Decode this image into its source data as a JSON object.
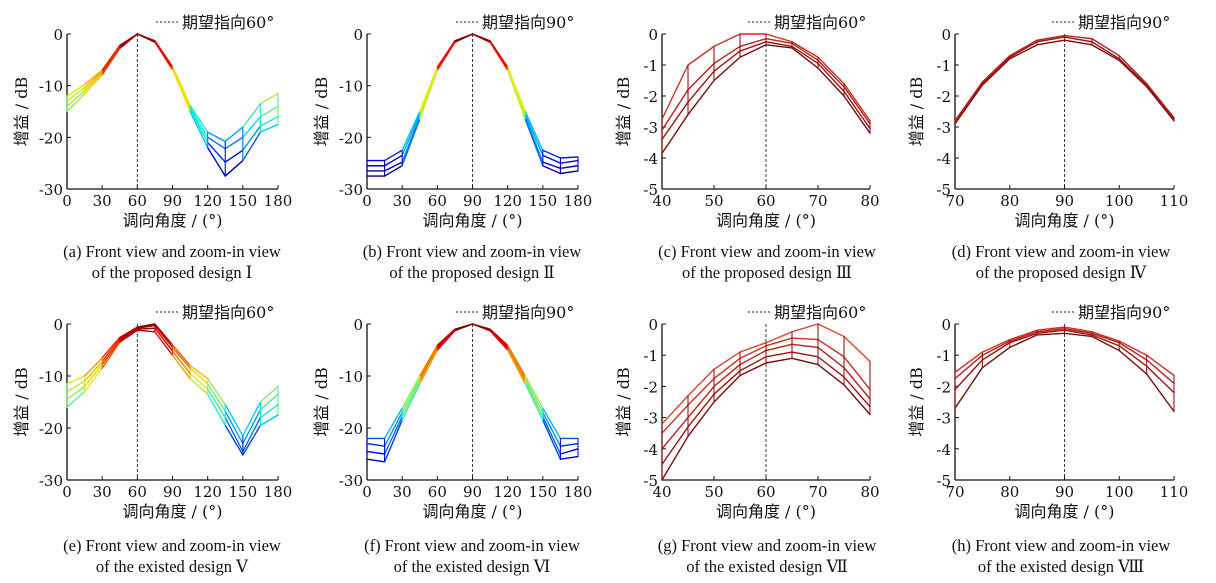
{
  "panels": [
    {
      "id": "a",
      "caption_line1": "(a) Front view and zoom-in view",
      "caption_line2": "of the proposed design Ⅰ",
      "legend": "期望指向60°",
      "xlabel": "调向角度 / (°)",
      "ylabel": "增益 / dB",
      "xticks": [
        "0",
        "30",
        "60",
        "90",
        "120",
        "150",
        "180"
      ],
      "yticks": [
        "0",
        "-10",
        "-20",
        "-30"
      ]
    },
    {
      "id": "b",
      "caption_line1": "(b)  Front view and zoom-in view",
      "caption_line2": "of the proposed design Ⅱ",
      "legend": "期望指向90°",
      "xlabel": "调向角度 / (°)",
      "ylabel": "增益 / dB",
      "xticks": [
        "0",
        "30",
        "60",
        "90",
        "120",
        "150",
        "180"
      ],
      "yticks": [
        "0",
        "-10",
        "-20",
        "-30"
      ]
    },
    {
      "id": "c",
      "caption_line1": "(c) Front view and zoom-in view",
      "caption_line2": "of the proposed design Ⅲ",
      "legend": "期望指向60°",
      "xlabel": "调向角度 / (°)",
      "ylabel": "增益 / dB",
      "xticks": [
        "40",
        "50",
        "60",
        "70",
        "80"
      ],
      "yticks": [
        "0",
        "-1",
        "-2",
        "-3",
        "-4",
        "-5"
      ]
    },
    {
      "id": "d",
      "caption_line1": "(d) Front view and zoom-in view",
      "caption_line2": "of the proposed design Ⅳ",
      "legend": "期望指向90°",
      "xlabel": "调向角度 / (°)",
      "ylabel": "增益 / dB",
      "xticks": [
        "70",
        "80",
        "90",
        "100",
        "110"
      ],
      "yticks": [
        "0",
        "-1",
        "-2",
        "-3",
        "-4",
        "-5"
      ]
    },
    {
      "id": "e",
      "caption_line1": "(e) Front view and zoom-in view",
      "caption_line2": "of the existed design Ⅴ",
      "legend": "期望指向60°",
      "xlabel": "调向角度 / (°)",
      "ylabel": "增益 / dB",
      "xticks": [
        "0",
        "30",
        "60",
        "90",
        "120",
        "150",
        "180"
      ],
      "yticks": [
        "0",
        "-10",
        "-20",
        "-30"
      ]
    },
    {
      "id": "f",
      "caption_line1": "(f) Front view and zoom-in view",
      "caption_line2": "of the existed design Ⅵ",
      "legend": "期望指向90°",
      "xlabel": "调向角度 / (°)",
      "ylabel": "增益 / dB",
      "xticks": [
        "0",
        "30",
        "60",
        "90",
        "120",
        "150",
        "180"
      ],
      "yticks": [
        "0",
        "-10",
        "-20",
        "-30"
      ]
    },
    {
      "id": "g",
      "caption_line1": "(g) Front view and zoom-in view",
      "caption_line2": "of the existed design Ⅶ",
      "legend": "期望指向60°",
      "xlabel": "调向角度 / (°)",
      "ylabel": "增益 / dB",
      "xticks": [
        "40",
        "50",
        "60",
        "70",
        "80"
      ],
      "yticks": [
        "0",
        "-1",
        "-2",
        "-3",
        "-4",
        "-5"
      ]
    },
    {
      "id": "h",
      "caption_line1": "(h) Front view and zoom-in view",
      "caption_line2": "of the existed design Ⅷ",
      "legend": "期望指向90°",
      "xlabel": "调向角度 / (°)",
      "ylabel": "增益 / dB",
      "xticks": [
        "70",
        "80",
        "90",
        "100",
        "110"
      ],
      "yticks": [
        "0",
        "-1",
        "-2",
        "-3",
        "-4",
        "-5"
      ]
    }
  ],
  "chart_data": [
    {
      "type": "line",
      "panel": "a",
      "target_angle": 60,
      "xlim": [
        0,
        180
      ],
      "ylim": [
        -30,
        0
      ],
      "grid": false,
      "legend_position": "top-right",
      "x": [
        0,
        15,
        30,
        45,
        60,
        75,
        90,
        105,
        120,
        135,
        150,
        165,
        180
      ],
      "series": [
        {
          "values": [
            -15.0,
            -11.6,
            -7.9,
            -2.8,
            0.0,
            -1.6,
            -6.9,
            -15.0,
            -22.0,
            -27.5,
            -24.5,
            -19.0,
            -17.5
          ]
        },
        {
          "values": [
            -14.0,
            -11.0,
            -7.6,
            -2.6,
            0.0,
            -1.5,
            -6.7,
            -14.6,
            -21.0,
            -24.8,
            -22.5,
            -17.8,
            -16.0
          ]
        },
        {
          "values": [
            -13.0,
            -10.4,
            -7.3,
            -2.4,
            0.0,
            -1.4,
            -6.5,
            -14.2,
            -20.0,
            -22.2,
            -20.0,
            -16.0,
            -14.0
          ]
        },
        {
          "values": [
            -12.0,
            -9.8,
            -7.0,
            -2.2,
            0.0,
            -1.3,
            -6.3,
            -13.8,
            -19.0,
            -20.8,
            -18.0,
            -13.5,
            -11.5
          ]
        }
      ]
    },
    {
      "type": "line",
      "panel": "b",
      "target_angle": 90,
      "xlim": [
        0,
        180
      ],
      "ylim": [
        -30,
        0
      ],
      "grid": false,
      "legend_position": "top-right",
      "x": [
        0,
        15,
        30,
        45,
        60,
        75,
        90,
        105,
        120,
        135,
        150,
        165,
        180
      ],
      "series": [
        {
          "values": [
            -27.5,
            -27.5,
            -25.5,
            -16.5,
            -7.0,
            -1.6,
            0.0,
            -1.6,
            -7.0,
            -16.5,
            -25.5,
            -27.0,
            -26.5
          ]
        },
        {
          "values": [
            -26.5,
            -26.5,
            -24.8,
            -16.0,
            -6.8,
            -1.5,
            0.0,
            -1.5,
            -6.8,
            -16.0,
            -24.8,
            -26.0,
            -25.5
          ]
        },
        {
          "values": [
            -25.5,
            -25.5,
            -23.5,
            -15.5,
            -6.6,
            -1.4,
            0.0,
            -1.4,
            -6.6,
            -15.5,
            -23.5,
            -25.0,
            -24.5
          ]
        },
        {
          "values": [
            -24.5,
            -24.5,
            -22.5,
            -15.0,
            -6.4,
            -1.3,
            0.0,
            -1.3,
            -6.4,
            -15.0,
            -22.5,
            -24.0,
            -23.8
          ]
        }
      ]
    },
    {
      "type": "line",
      "panel": "c",
      "target_angle": 60,
      "xlim": [
        40,
        80
      ],
      "ylim": [
        -5,
        0
      ],
      "grid": false,
      "legend_position": "top-right",
      "x": [
        40,
        45,
        50,
        55,
        60,
        65,
        70,
        75,
        80
      ],
      "series": [
        {
          "values": [
            -3.85,
            -2.6,
            -1.5,
            -0.75,
            -0.35,
            -0.45,
            -1.1,
            -2.0,
            -3.2
          ]
        },
        {
          "values": [
            -3.4,
            -2.2,
            -1.2,
            -0.55,
            -0.25,
            -0.4,
            -0.95,
            -1.85,
            -3.05
          ]
        },
        {
          "values": [
            -3.1,
            -1.8,
            -0.95,
            -0.4,
            -0.15,
            -0.3,
            -0.85,
            -1.7,
            -2.9
          ]
        },
        {
          "values": [
            -2.75,
            -1.0,
            -0.4,
            0.0,
            0.0,
            -0.25,
            -0.75,
            -1.6,
            -2.8
          ]
        }
      ]
    },
    {
      "type": "line",
      "panel": "d",
      "target_angle": 90,
      "xlim": [
        70,
        110
      ],
      "ylim": [
        -5,
        0
      ],
      "grid": false,
      "legend_position": "top-right",
      "x": [
        70,
        75,
        80,
        85,
        90,
        95,
        100,
        105,
        110
      ],
      "series": [
        {
          "values": [
            -2.9,
            -1.65,
            -0.8,
            -0.35,
            -0.2,
            -0.35,
            -0.85,
            -1.7,
            -2.8
          ]
        },
        {
          "values": [
            -2.85,
            -1.6,
            -0.75,
            -0.25,
            -0.1,
            -0.25,
            -0.8,
            -1.65,
            -2.75
          ]
        },
        {
          "values": [
            -2.8,
            -1.55,
            -0.7,
            -0.2,
            -0.05,
            -0.15,
            -0.7,
            -1.6,
            -2.7
          ]
        }
      ]
    },
    {
      "type": "line",
      "panel": "e",
      "target_angle": 60,
      "xlim": [
        0,
        180
      ],
      "ylim": [
        -30,
        0
      ],
      "grid": false,
      "legend_position": "top-right",
      "x": [
        0,
        15,
        30,
        45,
        60,
        75,
        90,
        105,
        120,
        135,
        150,
        165,
        180
      ],
      "series": [
        {
          "values": [
            -16.0,
            -13.0,
            -8.5,
            -3.5,
            -1.2,
            -1.5,
            -6.0,
            -10.5,
            -13.5,
            -19.5,
            -25.2,
            -19.5,
            -17.5
          ]
        },
        {
          "values": [
            -14.5,
            -12.0,
            -7.8,
            -3.2,
            -1.0,
            -0.8,
            -5.2,
            -9.5,
            -12.5,
            -18.0,
            -24.5,
            -18.0,
            -15.5
          ]
        },
        {
          "values": [
            -13.0,
            -11.0,
            -7.2,
            -2.9,
            -0.8,
            -0.3,
            -4.5,
            -8.5,
            -11.5,
            -16.8,
            -23.0,
            -16.5,
            -13.5
          ]
        },
        {
          "values": [
            -11.5,
            -10.0,
            -6.5,
            -2.6,
            -0.6,
            0.0,
            -4.0,
            -8.0,
            -10.5,
            -15.5,
            -21.5,
            -15.0,
            -12.0
          ]
        }
      ]
    },
    {
      "type": "line",
      "panel": "f",
      "target_angle": 90,
      "xlim": [
        0,
        180
      ],
      "ylim": [
        -30,
        0
      ],
      "grid": false,
      "legend_position": "top-right",
      "x": [
        0,
        15,
        30,
        45,
        60,
        75,
        90,
        105,
        120,
        135,
        150,
        165,
        180
      ],
      "series": [
        {
          "values": [
            -26.0,
            -26.5,
            -18.5,
            -11.5,
            -5.0,
            -1.3,
            0.0,
            -1.3,
            -5.0,
            -11.5,
            -18.5,
            -26.0,
            -25.5
          ]
        },
        {
          "values": [
            -24.5,
            -25.0,
            -17.8,
            -11.0,
            -4.7,
            -1.2,
            0.0,
            -1.2,
            -4.7,
            -11.0,
            -17.8,
            -25.0,
            -24.0
          ]
        },
        {
          "values": [
            -23.0,
            -23.5,
            -17.0,
            -10.5,
            -4.4,
            -1.1,
            0.0,
            -1.1,
            -4.4,
            -10.5,
            -17.0,
            -23.5,
            -23.0
          ]
        },
        {
          "values": [
            -22.0,
            -22.0,
            -16.2,
            -10.0,
            -4.1,
            -1.0,
            0.0,
            -1.0,
            -4.1,
            -10.0,
            -16.2,
            -22.0,
            -22.0
          ]
        }
      ]
    },
    {
      "type": "line",
      "panel": "g",
      "target_angle": 60,
      "xlim": [
        40,
        80
      ],
      "ylim": [
        -5,
        0
      ],
      "grid": false,
      "legend_position": "top-right",
      "x": [
        40,
        45,
        50,
        55,
        60,
        65,
        70,
        75,
        80
      ],
      "series": [
        {
          "values": [
            -5.0,
            -3.6,
            -2.5,
            -1.65,
            -1.25,
            -1.1,
            -1.3,
            -1.95,
            -2.9
          ]
        },
        {
          "values": [
            -4.5,
            -3.3,
            -2.25,
            -1.5,
            -1.05,
            -0.9,
            -1.05,
            -1.7,
            -2.65
          ]
        },
        {
          "values": [
            -4.0,
            -3.0,
            -2.0,
            -1.3,
            -0.85,
            -0.65,
            -0.75,
            -1.4,
            -2.4
          ]
        },
        {
          "values": [
            -3.5,
            -2.6,
            -1.75,
            -1.1,
            -0.7,
            -0.45,
            -0.5,
            -1.05,
            -2.1
          ]
        },
        {
          "values": [
            -3.2,
            -2.3,
            -1.45,
            -0.9,
            -0.6,
            -0.25,
            0.0,
            -0.4,
            -1.2
          ]
        }
      ]
    },
    {
      "type": "line",
      "panel": "h",
      "target_angle": 90,
      "xlim": [
        70,
        110
      ],
      "ylim": [
        -5,
        0
      ],
      "grid": false,
      "legend_position": "top-right",
      "x": [
        70,
        75,
        80,
        85,
        90,
        95,
        100,
        105,
        110
      ],
      "series": [
        {
          "values": [
            -2.7,
            -1.4,
            -0.75,
            -0.35,
            -0.3,
            -0.4,
            -0.85,
            -1.6,
            -2.8
          ]
        },
        {
          "values": [
            -2.1,
            -1.15,
            -0.6,
            -0.3,
            -0.2,
            -0.35,
            -0.7,
            -1.35,
            -2.2
          ]
        },
        {
          "values": [
            -1.75,
            -1.0,
            -0.55,
            -0.25,
            -0.15,
            -0.3,
            -0.6,
            -1.15,
            -1.9
          ]
        },
        {
          "values": [
            -1.55,
            -0.9,
            -0.5,
            -0.2,
            -0.1,
            -0.25,
            -0.55,
            -1.0,
            -1.65
          ]
        }
      ]
    }
  ]
}
